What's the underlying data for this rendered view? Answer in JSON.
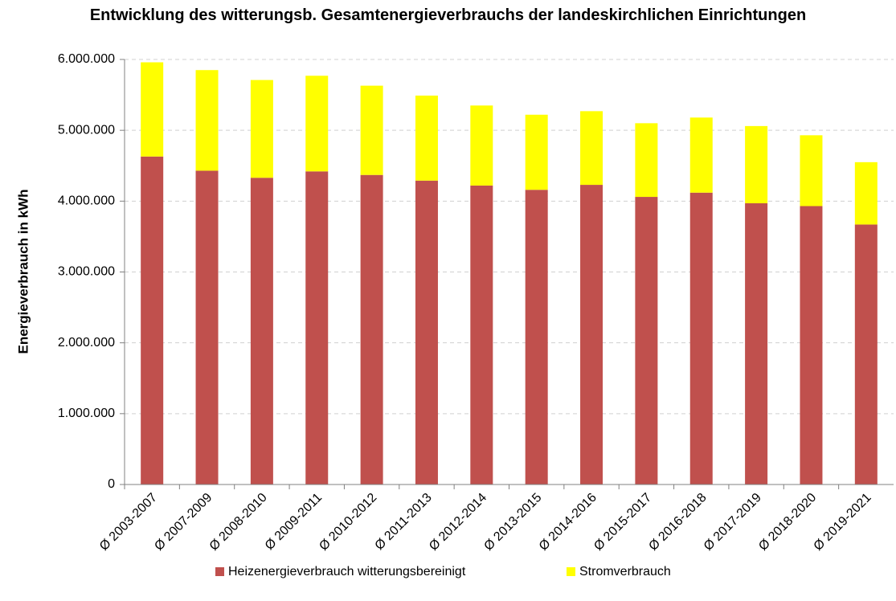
{
  "chart_data": {
    "type": "bar",
    "stacked": true,
    "title": "Entwicklung des witterungsb. Gesamtenergieverbrauchs der landeskirchlichen Einrichtungen",
    "y_label": "Energieverbrauch in kWh",
    "categories": [
      "Ø 2003-2007",
      "Ø 2007-2009",
      "Ø 2008-2010",
      "Ø 2009-2011",
      "Ø 2010-2012",
      "Ø 2011-2013",
      "Ø 2012-2014",
      "Ø 2013-2015",
      "Ø 2014-2016",
      "Ø 2015-2017",
      "Ø 2016-2018",
      "Ø 2017-2019",
      "Ø 2018-2020",
      "Ø 2019-2021"
    ],
    "series": [
      {
        "name": "Heizenergieverbrauch witterungsbereinigt",
        "color": "#c0504d",
        "values": [
          4630000,
          4430000,
          4330000,
          4420000,
          4370000,
          4290000,
          4220000,
          4160000,
          4230000,
          4060000,
          4120000,
          3970000,
          3930000,
          3670000
        ]
      },
      {
        "name": "Stromverbrauch",
        "color": "#ffff00",
        "values": [
          1330000,
          1420000,
          1380000,
          1350000,
          1260000,
          1200000,
          1130000,
          1060000,
          1040000,
          1040000,
          1060000,
          1090000,
          1000000,
          880000
        ]
      }
    ],
    "ylim": [
      0,
      6000000
    ],
    "yticks": [
      0,
      {
        "value": 1000000,
        "label": "1.000.000"
      },
      {
        "value": 2000000,
        "label": "2.000.000"
      },
      {
        "value": 3000000,
        "label": "3.000.000"
      },
      {
        "value": 4000000,
        "label": "4.000.000"
      },
      {
        "value": 5000000,
        "label": "5.000.000"
      },
      {
        "value": 6000000,
        "label": "6.000.000"
      }
    ],
    "grid": true,
    "legend": "bottom"
  }
}
